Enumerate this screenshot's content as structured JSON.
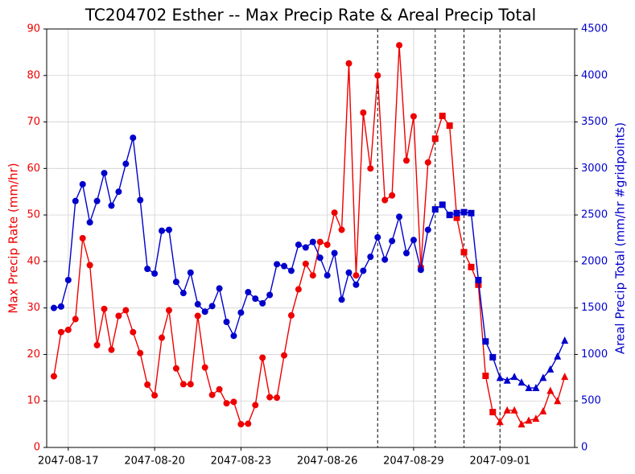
{
  "chart_data": {
    "type": "line",
    "title": "TC204702 Esther -- Max Precip Rate & Areal Precip Total",
    "y_label": "Max Precip Rate (mm/hr)",
    "y2_label": "Areal Precip Total (mm/hr #gridpoints)",
    "categories": [
      null,
      null,
      "2047-08-17",
      null,
      null,
      null,
      null,
      null,
      null,
      null,
      null,
      null,
      null,
      null,
      "2047-08-20",
      null,
      null,
      null,
      null,
      null,
      null,
      null,
      null,
      null,
      null,
      null,
      "2047-08-23",
      null,
      null,
      null,
      null,
      null,
      null,
      null,
      null,
      null,
      null,
      null,
      "2047-08-26",
      null,
      null,
      null,
      null,
      null,
      null,
      null,
      null,
      null,
      null,
      null,
      "2047-08-29",
      null,
      null,
      null,
      null,
      null,
      null,
      null,
      null,
      null,
      null,
      null,
      "2047-09-01",
      null,
      null,
      null,
      null,
      null,
      null,
      null,
      null,
      null
    ],
    "series": [
      {
        "name": "Max Precip Rate",
        "color": "#ee0000",
        "axis": "y",
        "values": [
          15.3,
          24.8,
          25.3,
          27.6,
          45.0,
          39.2,
          22.0,
          29.8,
          21.0,
          28.3,
          29.5,
          24.8,
          20.3,
          13.5,
          11.2,
          23.6,
          29.5,
          17.0,
          13.6,
          13.6,
          28.3,
          17.2,
          11.3,
          12.5,
          9.5,
          9.8,
          5.0,
          5.1,
          9.1,
          19.3,
          10.8,
          10.7,
          19.8,
          28.4,
          34.0,
          39.5,
          37.0,
          44.2,
          43.6,
          50.5,
          46.8,
          82.6,
          37.0,
          72.0,
          60.0,
          80.0,
          53.2,
          54.2,
          86.5,
          61.7,
          71.2,
          38.8,
          61.3,
          66.4,
          71.3,
          69.2,
          49.4,
          42.0,
          38.8,
          35.0,
          15.4,
          7.6,
          5.5,
          8.0,
          8.0,
          5.0,
          5.8,
          6.2,
          7.8,
          12.2,
          10.0,
          15.2
        ]
      },
      {
        "name": "Areal Precip Total",
        "color": "#0000cc",
        "axis": "y2",
        "values": [
          1500,
          1515,
          1800,
          2650,
          2830,
          2420,
          2650,
          2950,
          2600,
          2750,
          3050,
          3330,
          2660,
          1920,
          1870,
          2330,
          2340,
          1780,
          1660,
          1880,
          1540,
          1460,
          1520,
          1710,
          1350,
          1200,
          1450,
          1670,
          1600,
          1550,
          1640,
          1970,
          1950,
          1900,
          2180,
          2150,
          2210,
          2040,
          1850,
          2090,
          1590,
          1880,
          1750,
          1900,
          2050,
          2260,
          2020,
          2220,
          2480,
          2090,
          2230,
          1910,
          2340,
          2560,
          2610,
          2500,
          2520,
          2530,
          2520,
          1800,
          1140,
          970,
          750,
          720,
          760,
          700,
          640,
          640,
          750,
          840,
          980,
          1150
        ]
      }
    ],
    "marker_segments": [
      {
        "start": 0,
        "marker": "circle"
      },
      {
        "start": 53,
        "marker": "square"
      },
      {
        "start": 62,
        "marker": "triangle"
      }
    ],
    "vlines": [
      45,
      53,
      57,
      62
    ],
    "ylim": [
      0,
      90
    ],
    "yticks": [
      0,
      10,
      20,
      30,
      40,
      50,
      60,
      70,
      80,
      90
    ],
    "y2lim": [
      0,
      4500
    ],
    "y2ticks": [
      0,
      500,
      1000,
      1500,
      2000,
      2500,
      3000,
      3500,
      4000,
      4500
    ],
    "grid": true
  }
}
